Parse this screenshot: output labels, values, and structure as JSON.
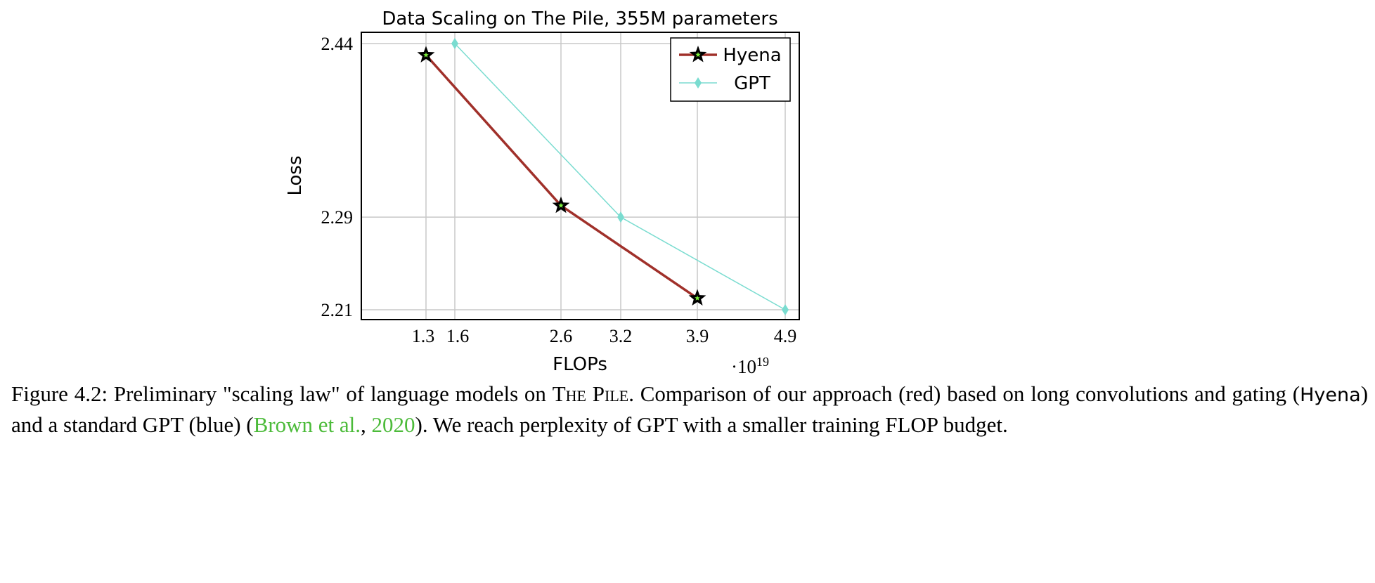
{
  "chart_data": {
    "type": "line",
    "title": "Data Scaling on The Pile, 355M parameters",
    "xlabel": "FLOPs",
    "x_multiplier": "·10",
    "x_multiplier_exp": "19",
    "ylabel": "Loss",
    "xticks": [
      1.3,
      1.6,
      2.6,
      3.2,
      3.9,
      4.9
    ],
    "yticks": [
      2.21,
      2.29,
      2.44
    ],
    "ylim": [
      2.2015,
      2.4497
    ],
    "xlim": [
      0.65,
      5.04
    ],
    "grid": true,
    "legend_position": "top-right",
    "series": [
      {
        "name": "Hyena",
        "color": "#a0302a",
        "marker": "star",
        "x": [
          1.3,
          2.6,
          3.9
        ],
        "y": [
          2.43,
          2.3,
          2.22
        ]
      },
      {
        "name": "GPT",
        "color": "#7adcd0",
        "marker": "diamond",
        "x": [
          1.6,
          3.2,
          4.9
        ],
        "y": [
          2.44,
          2.29,
          2.21
        ]
      }
    ]
  },
  "caption": {
    "prefix": "Figure 4.2: Preliminary \"scaling law\" of language models on ",
    "pile": "The Pile",
    "mid1": ". Comparison of our approach (red) based on long convolutions and gating (",
    "hyena": "Hyena",
    "mid2": ") and a standard GPT (blue) (",
    "cite_authors": "Brown et al.",
    "cite_sep": ", ",
    "cite_year": "2020",
    "suffix": "). We reach perplexity of GPT with a smaller training FLOP budget."
  }
}
